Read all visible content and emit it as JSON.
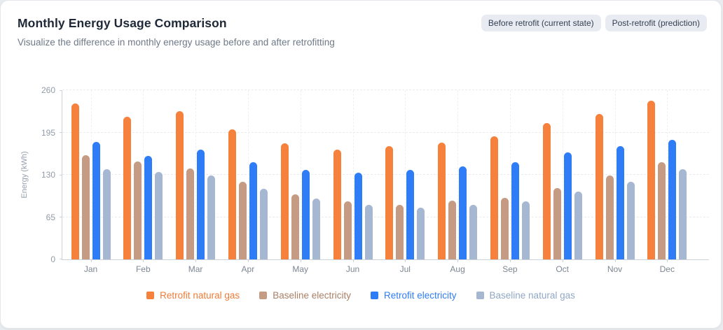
{
  "header": {
    "title": "Monthly Energy Usage Comparison",
    "subtitle": "Visualize the difference in monthly energy usage before and after retrofitting",
    "chips": [
      "Before retrofit (current state)",
      "Post-retrofit (prediction)"
    ]
  },
  "colors": {
    "card_background": "#ffffff",
    "page_background": "#e9ecef",
    "axis_line": "#ccd2da",
    "gridline": "#e9ebee",
    "title_text": "#1e2836",
    "subtitle_text": "#6e7987",
    "tick_text": "#929ba8",
    "chip_background": "#e8ecf2",
    "chip_text": "#333e50"
  },
  "chart_data": {
    "type": "bar",
    "title": "Monthly Energy Usage Comparison",
    "xlabel": "",
    "ylabel": "Energy (kWh)",
    "ylim": [
      0,
      260
    ],
    "yticks": [
      0,
      65,
      130,
      195,
      260
    ],
    "grid": true,
    "legend_position": "bottom",
    "categories": [
      "Jan",
      "Feb",
      "Mar",
      "Apr",
      "May",
      "Jun",
      "Jul",
      "Aug",
      "Sep",
      "Oct",
      "Nov",
      "Dec"
    ],
    "series": [
      {
        "name": "Retrofit natural gas",
        "color": "#f5813c",
        "text_color": "#f07c38",
        "values": [
          240,
          219,
          228,
          200,
          178,
          169,
          174,
          179,
          189,
          209,
          223,
          244
        ]
      },
      {
        "name": "Baseline electricity",
        "color": "#c59b83",
        "text_color": "#aa8067",
        "values": [
          160,
          150,
          140,
          119,
          100,
          89,
          84,
          90,
          95,
          110,
          129,
          149
        ]
      },
      {
        "name": "Retrofit electricity",
        "color": "#2e7cf6",
        "text_color": "#2e7cf6",
        "values": [
          180,
          159,
          169,
          149,
          138,
          133,
          138,
          143,
          149,
          164,
          174,
          184
        ]
      },
      {
        "name": "Baseline natural gas",
        "color": "#a6b7d2",
        "text_color": "#91a7c6",
        "values": [
          139,
          134,
          129,
          109,
          94,
          84,
          79,
          84,
          89,
          104,
          119,
          139
        ]
      }
    ]
  }
}
